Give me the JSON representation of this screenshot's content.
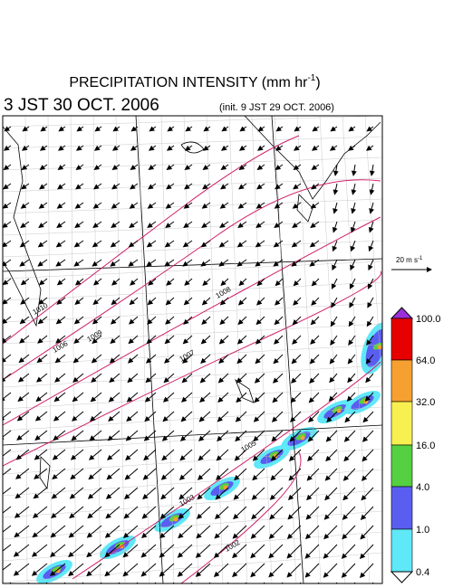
{
  "header": {
    "title": {
      "text": "PRECIPITATION INTENSITY (mm hr",
      "superscript": "-1",
      "close": ")"
    },
    "valid_time": "3 JST 30 OCT. 2006",
    "init_time": "(init. 9 JST 29 OCT. 2006)"
  },
  "wind_scale": {
    "text": "20 m s",
    "superscript": "-1"
  },
  "isobars": {
    "labels": [
      "1010",
      "1009",
      "1008",
      "1007",
      "1006",
      "1005",
      "1003",
      "1002"
    ]
  },
  "colorbar": {
    "labels": [
      "100.0",
      "64.0",
      "32.0",
      "16.0",
      "4.0",
      "1.0",
      "0.4"
    ],
    "colors": [
      "#9b30d8",
      "#e60000",
      "#f5a030",
      "#f8f050",
      "#55d040",
      "#5a5ef0",
      "#5ee8f8",
      "#ffffff"
    ]
  }
}
